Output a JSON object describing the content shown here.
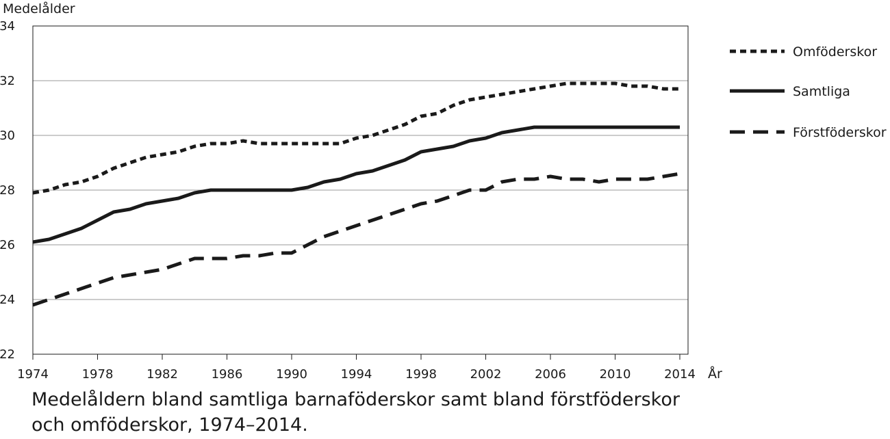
{
  "caption": "Medelåldern bland samtliga barnaföderskor samt bland förstföderskor och omföderskor, 1974–2014.",
  "chart_data": {
    "type": "line",
    "title": "",
    "ylabel": "Medelålder",
    "xlabel": "År",
    "xlim": [
      1974,
      2014
    ],
    "ylim": [
      22,
      34
    ],
    "xticks": [
      "1974",
      "1978",
      "1982",
      "1986",
      "1990",
      "1994",
      "1998",
      "2002",
      "2006",
      "2010",
      "2014"
    ],
    "yticks": [
      "22",
      "24",
      "26",
      "28",
      "30",
      "32",
      "34"
    ],
    "grid": "horizontal",
    "legend_position": "right",
    "x": [
      1974,
      1975,
      1976,
      1977,
      1978,
      1979,
      1980,
      1981,
      1982,
      1983,
      1984,
      1985,
      1986,
      1987,
      1988,
      1989,
      1990,
      1991,
      1992,
      1993,
      1994,
      1995,
      1996,
      1997,
      1998,
      1999,
      2000,
      2001,
      2002,
      2003,
      2004,
      2005,
      2006,
      2007,
      2008,
      2009,
      2010,
      2011,
      2012,
      2013,
      2014
    ],
    "series": [
      {
        "name": "Omföderskor",
        "style": "short-dash",
        "color": "#1a1a1a",
        "values": [
          27.9,
          28.0,
          28.2,
          28.3,
          28.5,
          28.8,
          29.0,
          29.2,
          29.3,
          29.4,
          29.6,
          29.7,
          29.7,
          29.8,
          29.7,
          29.7,
          29.7,
          29.7,
          29.7,
          29.7,
          29.9,
          30.0,
          30.2,
          30.4,
          30.7,
          30.8,
          31.1,
          31.3,
          31.4,
          31.5,
          31.6,
          31.7,
          31.8,
          31.9,
          31.9,
          31.9,
          31.9,
          31.8,
          31.8,
          31.7,
          31.7
        ]
      },
      {
        "name": "Samtliga",
        "style": "solid",
        "color": "#1a1a1a",
        "values": [
          26.1,
          26.2,
          26.4,
          26.6,
          26.9,
          27.2,
          27.3,
          27.5,
          27.6,
          27.7,
          27.9,
          28.0,
          28.0,
          28.0,
          28.0,
          28.0,
          28.0,
          28.1,
          28.3,
          28.4,
          28.6,
          28.7,
          28.9,
          29.1,
          29.4,
          29.5,
          29.6,
          29.8,
          29.9,
          30.1,
          30.2,
          30.3,
          30.3,
          30.3,
          30.3,
          30.3,
          30.3,
          30.3,
          30.3,
          30.3,
          30.3
        ]
      },
      {
        "name": "Förstföderskor",
        "style": "long-dash",
        "color": "#1a1a1a",
        "values": [
          23.8,
          24.0,
          24.2,
          24.4,
          24.6,
          24.8,
          24.9,
          25.0,
          25.1,
          25.3,
          25.5,
          25.5,
          25.5,
          25.6,
          25.6,
          25.7,
          25.7,
          26.0,
          26.3,
          26.5,
          26.7,
          26.9,
          27.1,
          27.3,
          27.5,
          27.6,
          27.8,
          28.0,
          28.0,
          28.3,
          28.4,
          28.4,
          28.5,
          28.4,
          28.4,
          28.3,
          28.4,
          28.4,
          28.4,
          28.5,
          28.6
        ]
      }
    ]
  }
}
